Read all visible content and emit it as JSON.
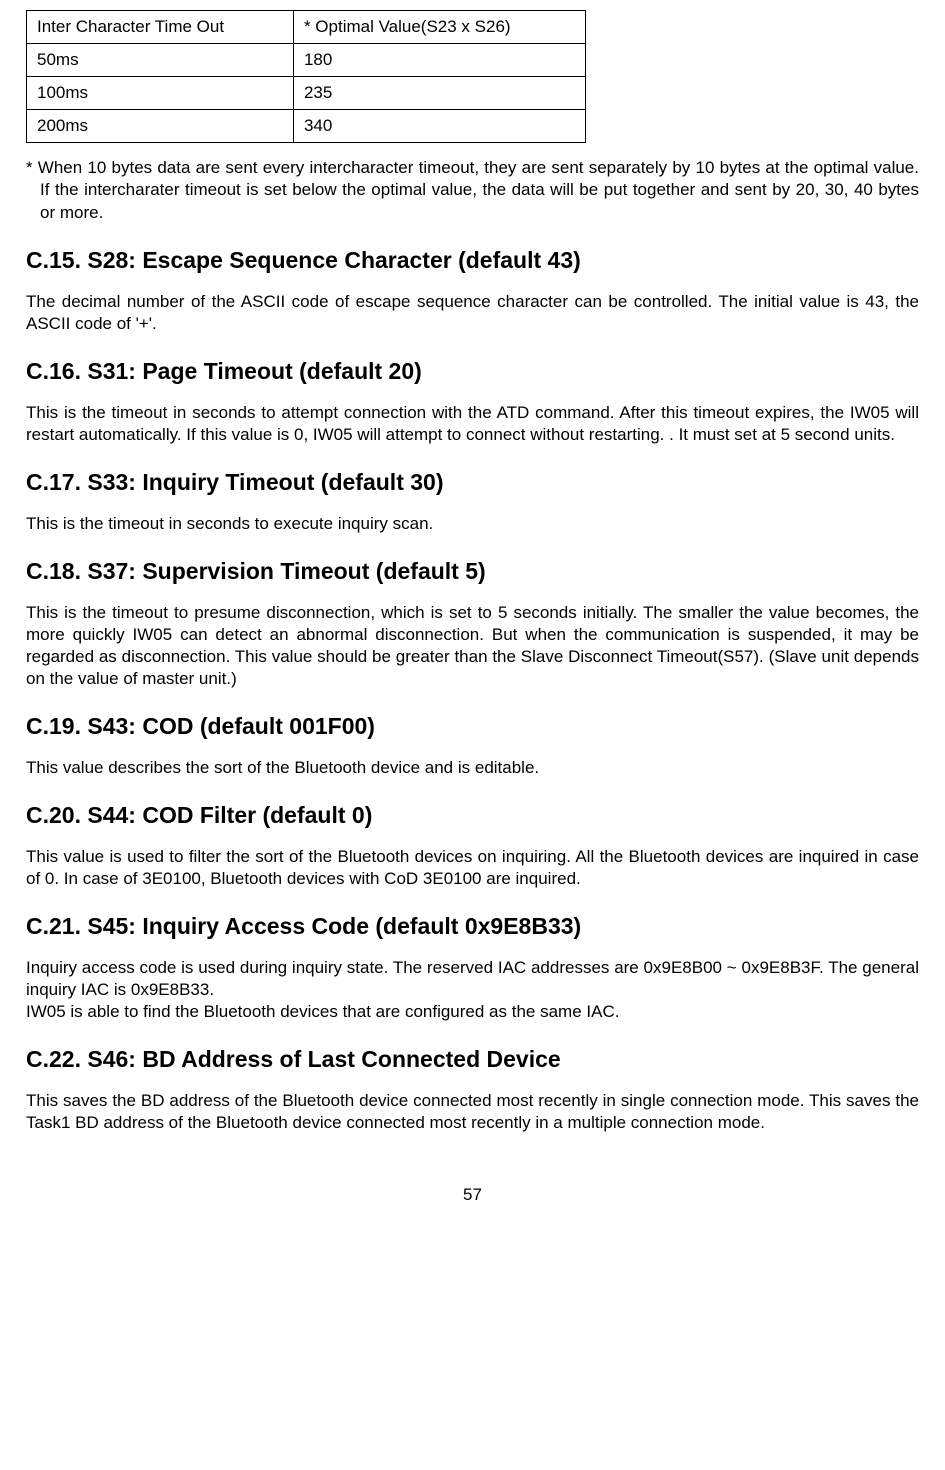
{
  "table": {
    "header": {
      "col1": "Inter Character Time Out",
      "col2": "* Optimal Value(S23 x S26)"
    },
    "rows": [
      {
        "col1": "50ms",
        "col2": "180"
      },
      {
        "col1": "100ms",
        "col2": "235"
      },
      {
        "col1": "200ms",
        "col2": "340"
      }
    ]
  },
  "note": "* When 10 bytes data are sent every intercharacter timeout, they are sent separately by 10 bytes at the optimal value. If the intercharater timeout is set below the optimal value, the data will be put together and sent by 20, 30, 40 bytes or more.",
  "sections": [
    {
      "heading": "C.15. S28: Escape Sequence Character (default 43)",
      "body": "The decimal number of the ASCII code of escape sequence character can be controlled. The initial value is 43, the ASCII code of '+'."
    },
    {
      "heading": "C.16. S31: Page Timeout (default 20)",
      "body": "This is the timeout in seconds to attempt connection with the ATD command. After this timeout expires, the IW05 will restart automatically. If this value is 0, IW05 will attempt to connect without restarting. . It must set at 5 second units."
    },
    {
      "heading": "C.17. S33: Inquiry Timeout (default 30)",
      "body": "This is the timeout in seconds to execute inquiry scan."
    },
    {
      "heading": "C.18. S37: Supervision Timeout (default 5)",
      "body": "This is the timeout to presume disconnection, which is set to 5 seconds initially. The smaller the value becomes, the more quickly IW05 can detect an abnormal disconnection. But when the communication is suspended, it may be regarded as disconnection. This value should be greater than the Slave Disconnect Timeout(S57). (Slave unit depends on the value of master unit.)"
    },
    {
      "heading": "C.19. S43: COD (default 001F00)",
      "body": "This value describes the sort of the Bluetooth device and is editable."
    },
    {
      "heading": "C.20. S44: COD Filter (default 0)",
      "body": "This value is used to filter the sort of the Bluetooth devices on inquiring. All the Bluetooth devices are inquired in case of 0. In case of 3E0100, Bluetooth devices with CoD 3E0100 are inquired."
    },
    {
      "heading": "C.21. S45: Inquiry Access Code (default 0x9E8B33)",
      "body": "Inquiry access code is used during inquiry state. The reserved IAC addresses are 0x9E8B00 ~ 0x9E8B3F. The general inquiry IAC is 0x9E8B33.\nIW05 is able to find the Bluetooth devices that are configured as the same IAC."
    },
    {
      "heading": "C.22. S46: BD Address of Last Connected Device",
      "body": "This saves the BD address of the Bluetooth device connected most recently in single connection mode. This saves the Task1 BD address of the Bluetooth device connected most recently in a multiple connection mode."
    }
  ],
  "pageNumber": "57"
}
